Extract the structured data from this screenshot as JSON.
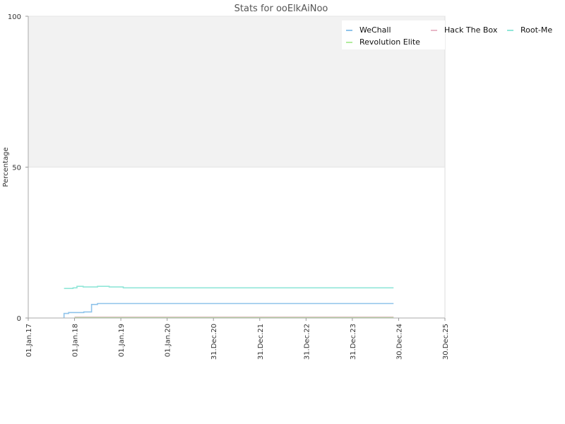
{
  "chart_data": {
    "type": "line",
    "title": "Stats for ooElkAiNoo",
    "xlabel": "",
    "ylabel": "Percentage",
    "ylim": [
      0,
      100
    ],
    "yticks": [
      "0",
      "50",
      "100"
    ],
    "xticks": [
      {
        "date": "2017-01-01",
        "label": "01.Jan.17"
      },
      {
        "date": "2018-01-01",
        "label": "01.Jan.18"
      },
      {
        "date": "2019-01-01",
        "label": "01.Jan.19"
      },
      {
        "date": "2020-01-01",
        "label": "01.Jan.20"
      },
      {
        "date": "2020-12-31",
        "label": "31.Dec.20"
      },
      {
        "date": "2021-12-31",
        "label": "31.Dec.21"
      },
      {
        "date": "2022-12-31",
        "label": "31.Dec.22"
      },
      {
        "date": "2023-12-31",
        "label": "31.Dec.23"
      },
      {
        "date": "2024-12-30",
        "label": "30.Dec.24"
      },
      {
        "date": "2025-12-30",
        "label": "30.Dec.25"
      }
    ],
    "xlim": [
      "2017-01-01",
      "2025-12-30"
    ],
    "upper_band": [
      50,
      100
    ],
    "upper_band_color": "#f2f2f2",
    "legend_position": "top-right",
    "series": [
      {
        "name": "WeChall",
        "color": "#8fc3ea",
        "step": true,
        "points": [
          [
            "2017-10-10",
            0
          ],
          [
            "2017-10-10",
            1.5
          ],
          [
            "2017-11-15",
            1.8
          ],
          [
            "2018-03-15",
            2.0
          ],
          [
            "2018-05-15",
            4.5
          ],
          [
            "2018-07-01",
            4.8
          ],
          [
            "2024-11-20",
            4.8
          ]
        ]
      },
      {
        "name": "Hack The Box",
        "color": "#e8b8c8",
        "step": true,
        "points": [
          [
            "2018-01-01",
            0.3
          ],
          [
            "2024-11-20",
            0.3
          ]
        ]
      },
      {
        "name": "Root-Me",
        "color": "#90e6d8",
        "step": true,
        "points": [
          [
            "2017-10-10",
            9.8
          ],
          [
            "2017-12-20",
            10.0
          ],
          [
            "2018-01-20",
            10.5
          ],
          [
            "2018-03-10",
            10.3
          ],
          [
            "2018-07-01",
            10.5
          ],
          [
            "2018-10-01",
            10.3
          ],
          [
            "2019-01-20",
            10.0
          ],
          [
            "2024-11-20",
            10.0
          ]
        ]
      },
      {
        "name": "Revolution Elite",
        "color": "#b2ec9e",
        "step": true,
        "points": [
          [
            "2018-01-01",
            0.1
          ],
          [
            "2024-11-20",
            0.1
          ]
        ]
      }
    ]
  }
}
